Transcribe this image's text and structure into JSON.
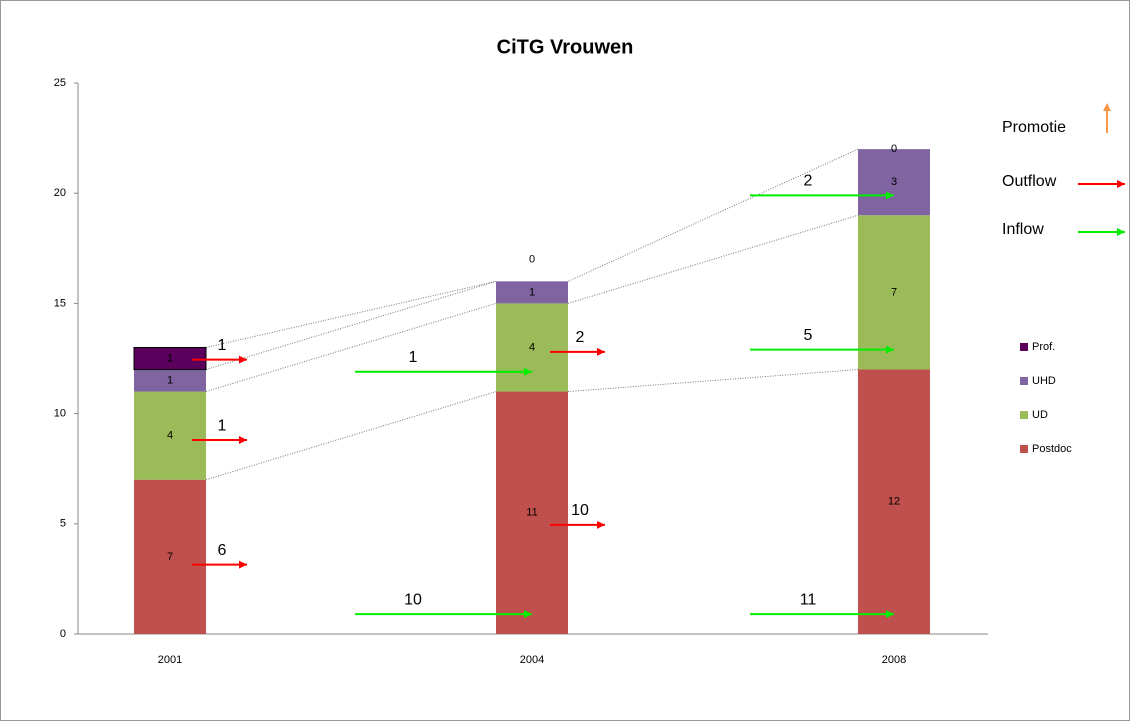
{
  "chart_data": {
    "type": "stacked_bar",
    "title": "CiTG Vrouwen",
    "categories": [
      "2001",
      "2004",
      "2008"
    ],
    "series": [
      {
        "name": "Postdoc",
        "color": "#c0504d",
        "values": [
          7,
          11,
          12
        ]
      },
      {
        "name": "UD",
        "color": "#9bbb59",
        "values": [
          4,
          4,
          7
        ]
      },
      {
        "name": "UHD",
        "color": "#8064a2",
        "values": [
          1,
          1,
          3
        ]
      },
      {
        "name": "Prof.",
        "color": "#5c005e",
        "values": [
          1,
          0,
          0
        ]
      }
    ],
    "ylim": [
      0,
      25
    ],
    "yticks": [
      0,
      5,
      10,
      15,
      20,
      25
    ],
    "legend": "right",
    "flow_legend": [
      {
        "name": "Promotie",
        "color": "#f79646"
      },
      {
        "name": "Outflow",
        "color": "#ff0000"
      },
      {
        "name": "Inflow",
        "color": "#00ee00"
      }
    ],
    "flows": [
      {
        "kind": "Outflow",
        "category": "2001",
        "series": "Prof.",
        "value": 1
      },
      {
        "kind": "Outflow",
        "category": "2001",
        "series": "UD",
        "value": 1
      },
      {
        "kind": "Outflow",
        "category": "2001",
        "series": "Postdoc",
        "value": 6
      },
      {
        "kind": "Inflow",
        "category": "2004",
        "series": "UD",
        "value": 1
      },
      {
        "kind": "Outflow",
        "category": "2004",
        "series": "UD",
        "value": 2
      },
      {
        "kind": "Inflow",
        "category": "2004",
        "series": "Postdoc",
        "value": 10
      },
      {
        "kind": "Outflow",
        "category": "2004",
        "series": "Postdoc",
        "value": 10
      },
      {
        "kind": "Inflow",
        "category": "2008",
        "series": "UHD",
        "value": 2
      },
      {
        "kind": "Inflow",
        "category": "2008",
        "series": "UD",
        "value": 5
      },
      {
        "kind": "Inflow",
        "category": "2008",
        "series": "Postdoc",
        "value": 11
      }
    ]
  }
}
